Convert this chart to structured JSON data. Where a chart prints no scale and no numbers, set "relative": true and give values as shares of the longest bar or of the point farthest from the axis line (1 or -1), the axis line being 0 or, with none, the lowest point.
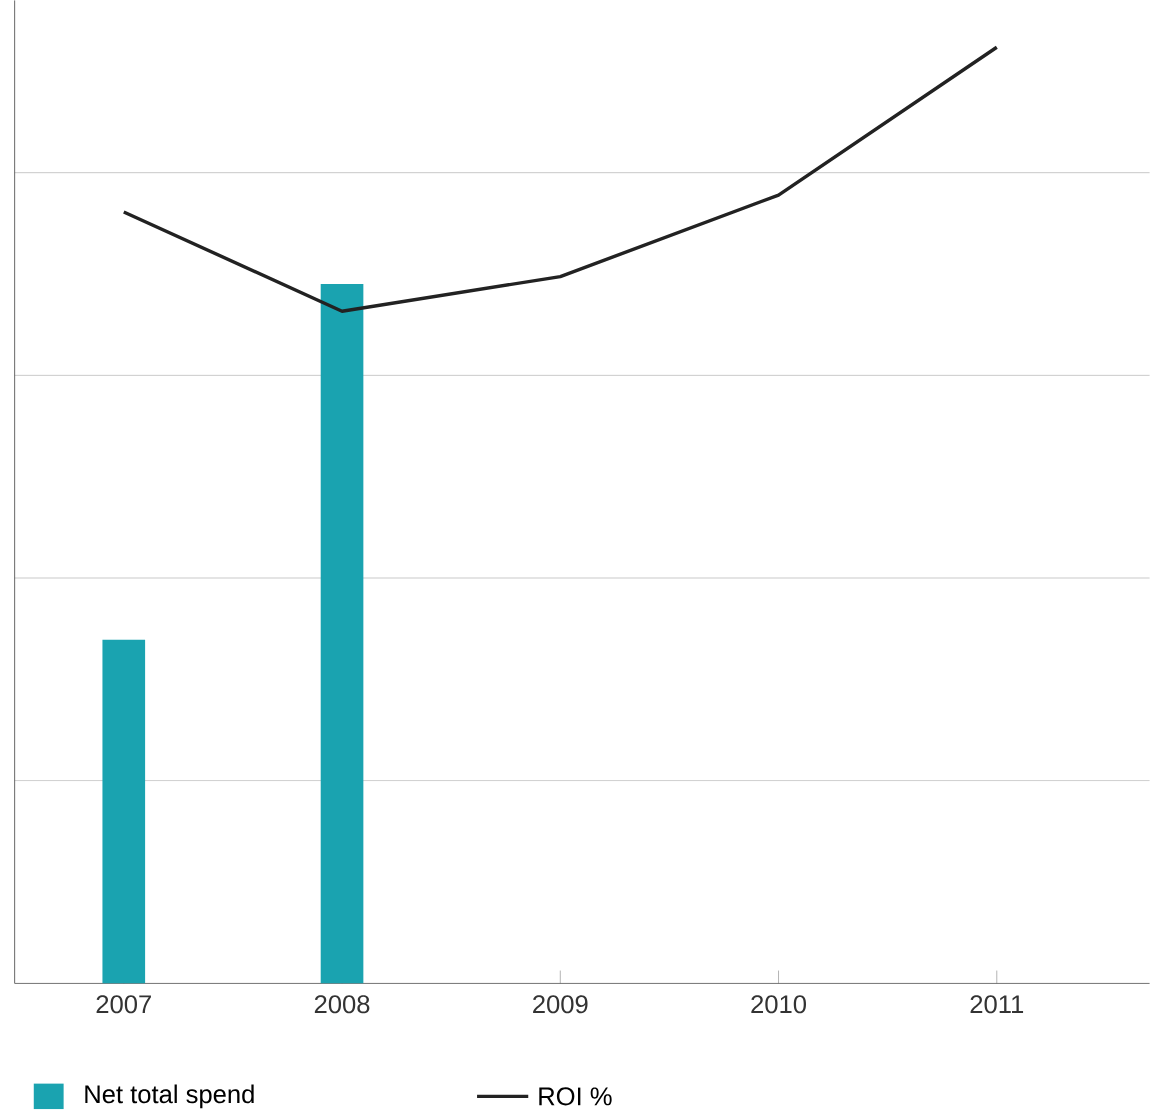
{
  "chart_data": {
    "type": "bar",
    "relative": true,
    "categories": [
      "2007",
      "2008",
      "2009",
      "2010",
      "2011"
    ],
    "series": [
      {
        "name": "Net total spend",
        "color": "#1aa3b0",
        "values": [
          0.367,
          0.747,
          null,
          null,
          null
        ]
      },
      {
        "name": "ROI %",
        "type": "line",
        "color": "#222222",
        "values": [
          0.824,
          0.718,
          0.755,
          0.842,
          1.0
        ]
      }
    ],
    "grid": "y",
    "legend": "bottom",
    "marker": "none",
    "line_style": "solid"
  }
}
